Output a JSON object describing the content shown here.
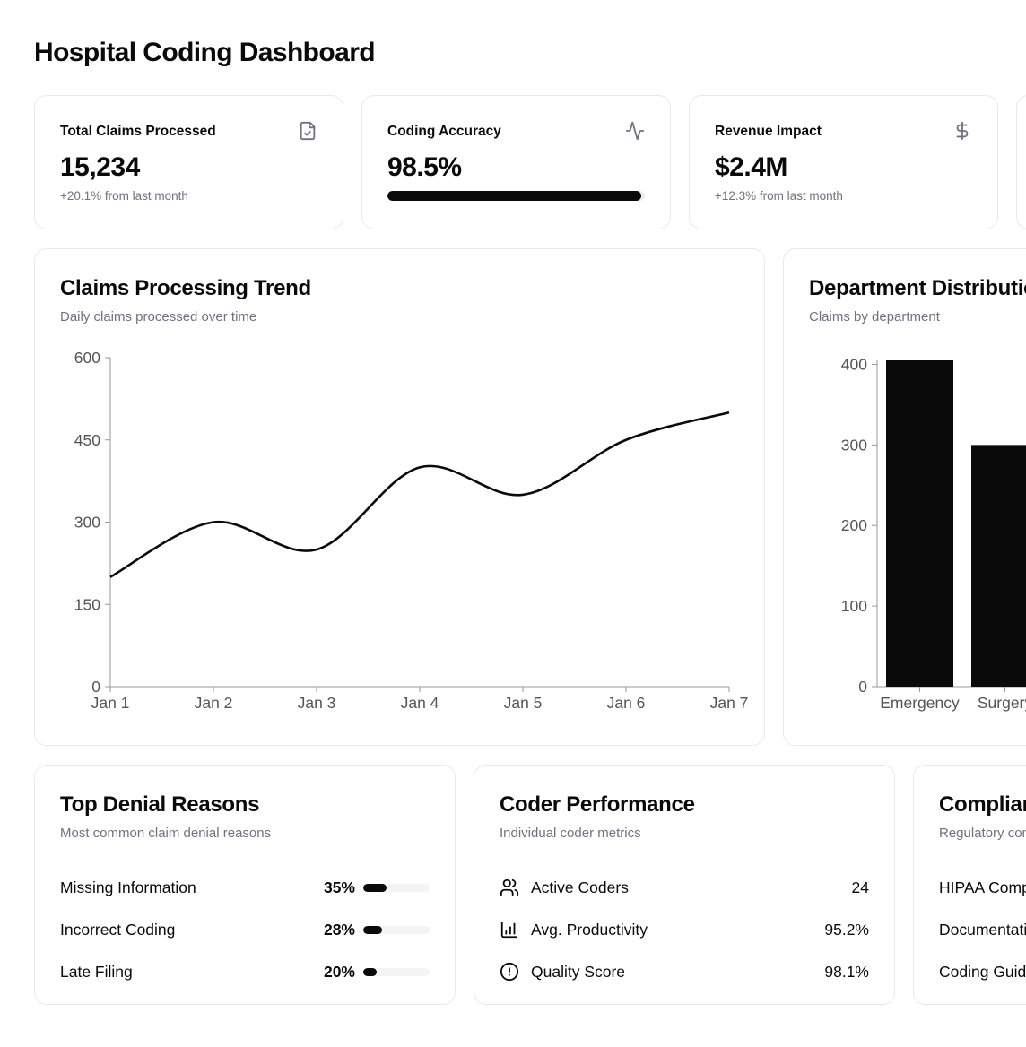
{
  "page": {
    "title": "Hospital Coding Dashboard"
  },
  "stats": [
    {
      "label": "Total Claims Processed",
      "value": "15,234",
      "sub": "+20.1% from last month",
      "icon": "file-check"
    },
    {
      "label": "Coding Accuracy",
      "value": "98.5%",
      "progress_pct": 98.5,
      "icon": "activity"
    },
    {
      "label": "Revenue Impact",
      "value": "$2.4M",
      "sub": "+12.3% from last month",
      "icon": "dollar-sign"
    },
    {
      "label": "",
      "value": "",
      "sub": "",
      "icon": ""
    }
  ],
  "chart_data": [
    {
      "type": "line",
      "title": "Claims Processing Trend",
      "subtitle": "Daily claims processed over time",
      "x": [
        "Jan 1",
        "Jan 2",
        "Jan 3",
        "Jan 4",
        "Jan 5",
        "Jan 6",
        "Jan 7"
      ],
      "values": [
        200,
        300,
        250,
        400,
        350,
        450,
        500
      ],
      "ylim": [
        0,
        600
      ],
      "yticks": [
        0,
        150,
        300,
        450,
        600
      ],
      "line_color": "#0a0a0a",
      "grid": false,
      "legend": false
    },
    {
      "type": "bar",
      "title": "Department Distribution",
      "subtitle": "Claims by department",
      "categories": [
        "Emergency",
        "Surgery"
      ],
      "values": [
        405,
        300
      ],
      "ylim": [
        0,
        405
      ],
      "yticks": [
        0,
        100,
        200,
        300,
        400
      ],
      "bar_color": "#0a0a0a",
      "grid": false,
      "legend": false
    }
  ],
  "denials": {
    "title": "Top Denial Reasons",
    "subtitle": "Most common claim denial reasons",
    "rows": [
      {
        "label": "Missing Information",
        "pct": "35%",
        "pct_value": 35
      },
      {
        "label": "Incorrect Coding",
        "pct": "28%",
        "pct_value": 28
      },
      {
        "label": "Late Filing",
        "pct": "20%",
        "pct_value": 20
      }
    ]
  },
  "coder": {
    "title": "Coder Performance",
    "subtitle": "Individual coder metrics",
    "rows": [
      {
        "icon": "users",
        "label": "Active Coders",
        "value": "24"
      },
      {
        "icon": "chart-column",
        "label": "Avg. Productivity",
        "value": "95.2%"
      },
      {
        "icon": "circle-alert",
        "label": "Quality Score",
        "value": "98.1%"
      }
    ]
  },
  "compliance": {
    "title": "Compliance Status",
    "subtitle": "Regulatory compliance overview",
    "rows": [
      {
        "label": "HIPAA Compliance",
        "value": ""
      },
      {
        "label": "Documentation",
        "value": ""
      },
      {
        "label": "Coding Guidelines",
        "value": ""
      }
    ]
  },
  "colors": {
    "accent": "#0a0a0a",
    "muted_text": "#717182",
    "card_border": "#e9e9ef",
    "track": "#f4f4f5",
    "axis": "#999999",
    "tick_text": "#555555"
  }
}
